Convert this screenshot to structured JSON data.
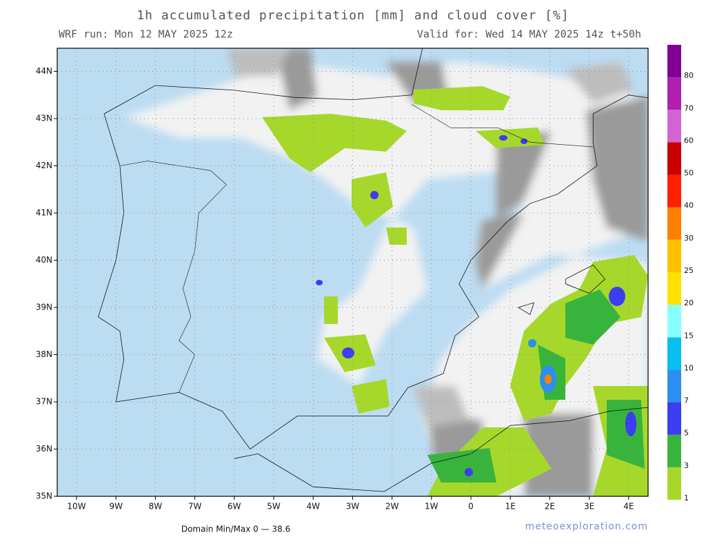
{
  "header": {
    "title": "1h accumulated precipitation [mm] and cloud cover [%]",
    "run": "WRF run: Mon 12 MAY 2025 12z",
    "valid": "Valid for: Wed 14 MAY 2025 14z  t+50h"
  },
  "map": {
    "lat_labels": [
      "35N",
      "36N",
      "37N",
      "38N",
      "39N",
      "40N",
      "41N",
      "42N",
      "43N",
      "44N"
    ],
    "lon_labels": [
      "10W",
      "9W",
      "8W",
      "7W",
      "6W",
      "5W",
      "4W",
      "3W",
      "2W",
      "1W",
      "0",
      "1E",
      "2E",
      "3E",
      "4E"
    ]
  },
  "colorbar": {
    "levels": [
      1,
      3,
      5,
      7,
      10,
      15,
      20,
      25,
      30,
      40,
      50,
      60,
      70,
      80
    ],
    "colors": [
      "#a6d82c",
      "#38b43c",
      "#3c3cf0",
      "#2c8ef0",
      "#08c0f0",
      "#88ffff",
      "#ffe000",
      "#ffc000",
      "#ff8000",
      "#ff2000",
      "#c80000",
      "#d464d4",
      "#b020b0",
      "#800094"
    ]
  },
  "footer": {
    "minmax": "Domain Min/Max 0 — 38.6",
    "credit": "meteoexploration.com"
  }
}
